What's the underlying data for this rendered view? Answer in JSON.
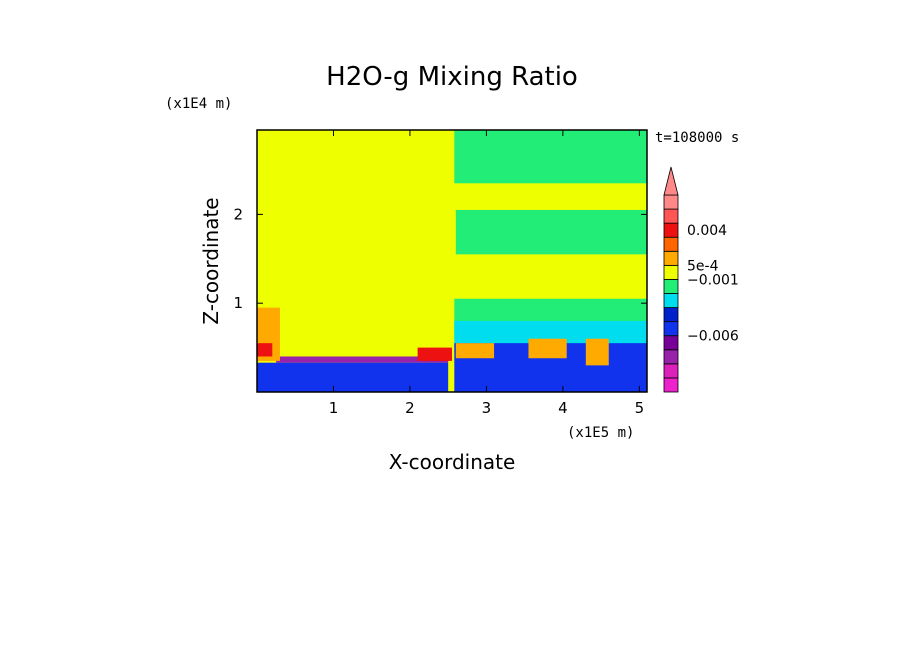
{
  "chart_data": {
    "type": "heatmap",
    "title": "H2O-g Mixing Ratio",
    "time_label": "t=108000 s",
    "xlabel": "X-coordinate",
    "ylabel": "Z-coordinate",
    "x_scale_label": "(x1E5 m)",
    "y_scale_label": "(x1E4 m)",
    "xlim": [
      0,
      5.1
    ],
    "ylim": [
      0,
      2.95
    ],
    "x_ticks": [
      1,
      2,
      3,
      4,
      5
    ],
    "y_ticks": [
      1,
      2
    ],
    "colorbar": {
      "levels": [
        {
          "color": "#ee22cc"
        },
        {
          "color": "#dd22bb"
        },
        {
          "color": "#9922aa"
        },
        {
          "color": "#770099"
        },
        {
          "color": "#1133ee"
        },
        {
          "color": "#0022cc"
        },
        {
          "color": "#00ddee"
        },
        {
          "color": "#22ee77"
        },
        {
          "color": "#eeff00"
        },
        {
          "color": "#ffaa00"
        },
        {
          "color": "#ff6600"
        },
        {
          "color": "#ee1111"
        },
        {
          "color": "#ff5555"
        },
        {
          "color": "#ff8888"
        }
      ],
      "labels": [
        {
          "text": "0.004",
          "level_index": 11.5
        },
        {
          "text": "5e-4",
          "level_index": 9
        },
        {
          "text": "−0.001",
          "level_index": 8
        },
        {
          "text": "−0.006",
          "level_index": 4
        }
      ]
    },
    "regions": [
      {
        "name": "background",
        "color": "#eeff00",
        "x": [
          0,
          5.1
        ],
        "z": [
          0,
          2.95
        ]
      },
      {
        "name": "upper-right-green",
        "color": "#22ee77",
        "x": [
          2.58,
          5.1
        ],
        "z": [
          2.35,
          2.95
        ]
      },
      {
        "name": "band-green",
        "color": "#22ee77",
        "x": [
          2.6,
          5.1
        ],
        "z": [
          1.55,
          2.05
        ]
      },
      {
        "name": "lower-right-green",
        "color": "#22ee77",
        "x": [
          2.58,
          5.1
        ],
        "z": [
          0.6,
          1.05
        ]
      },
      {
        "name": "lower-right-cyan",
        "color": "#00ddee",
        "x": [
          2.58,
          5.1
        ],
        "z": [
          0.45,
          0.8
        ]
      },
      {
        "name": "lower-right-blue",
        "color": "#1133ee",
        "x": [
          2.58,
          5.1
        ],
        "z": [
          0,
          0.55
        ]
      },
      {
        "name": "left-purple-layer",
        "color": "#9922aa",
        "x": [
          0.25,
          2.5
        ],
        "z": [
          0.33,
          0.4
        ]
      },
      {
        "name": "left-surface-blue",
        "color": "#1133ee",
        "x": [
          0,
          2.5
        ],
        "z": [
          0,
          0.33
        ]
      },
      {
        "name": "left-edge-orange",
        "color": "#ffaa00",
        "x": [
          0,
          0.3
        ],
        "z": [
          0.35,
          0.95
        ]
      },
      {
        "name": "left-edge-red",
        "color": "#ee1111",
        "x": [
          0,
          0.2
        ],
        "z": [
          0.4,
          0.55
        ]
      },
      {
        "name": "mid-red-plume",
        "color": "#ee1111",
        "x": [
          2.1,
          2.55
        ],
        "z": [
          0.35,
          0.5
        ]
      },
      {
        "name": "orange-blob-1",
        "color": "#ffaa00",
        "x": [
          2.6,
          3.1
        ],
        "z": [
          0.38,
          0.55
        ]
      },
      {
        "name": "orange-blob-2",
        "color": "#ffaa00",
        "x": [
          3.55,
          4.05
        ],
        "z": [
          0.38,
          0.6
        ]
      },
      {
        "name": "orange-blob-3",
        "color": "#ffaa00",
        "x": [
          4.3,
          4.6
        ],
        "z": [
          0.3,
          0.6
        ]
      }
    ]
  }
}
